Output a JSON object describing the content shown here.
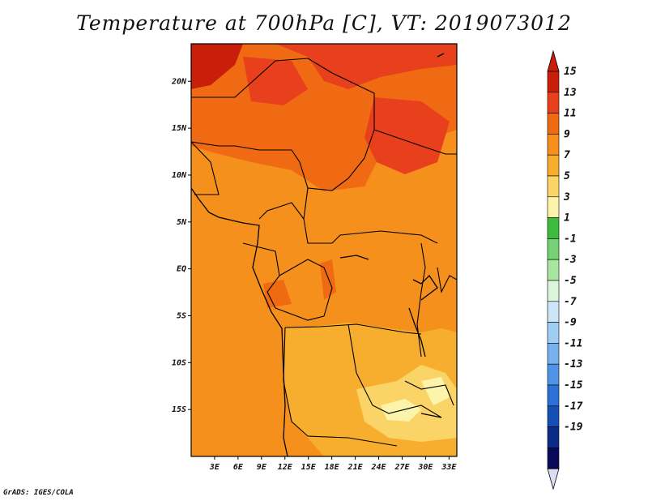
{
  "title": "Temperature at 700hPa [C], VT: 2019073012",
  "footer": "GrADS: IGES/COLA",
  "map": {
    "lon_range": [
      0,
      34
    ],
    "lat_range": [
      -20,
      24
    ],
    "x_tick_labels": [
      "3E",
      "6E",
      "9E",
      "12E",
      "15E",
      "18E",
      "21E",
      "24E",
      "27E",
      "30E",
      "33E"
    ],
    "y_tick_labels": [
      "20N",
      "15N",
      "10N",
      "5N",
      "EQ",
      "5S",
      "10S",
      "15S"
    ]
  },
  "colorbar": {
    "labels": [
      "15",
      "13",
      "11",
      "9",
      "7",
      "5",
      "3",
      "1",
      "-1",
      "-3",
      "-5",
      "-7",
      "-9",
      "-11",
      "-13",
      "-15",
      "-17",
      "-19"
    ],
    "colors": [
      "#c81e0a",
      "#e8401c",
      "#f06a14",
      "#f5901c",
      "#f7ae2e",
      "#fbd468",
      "#fbf4aa",
      "#3cbc3c",
      "#74d274",
      "#a8e6a0",
      "#dcf4dc",
      "#cce6f7",
      "#a0cdf4",
      "#78b2ee",
      "#4f94e6",
      "#2c72d6",
      "#1450b4",
      "#0a2c88",
      "#0a0a5a"
    ],
    "over_color": "#c81e0a",
    "under_color": "#dcdcf4"
  }
}
